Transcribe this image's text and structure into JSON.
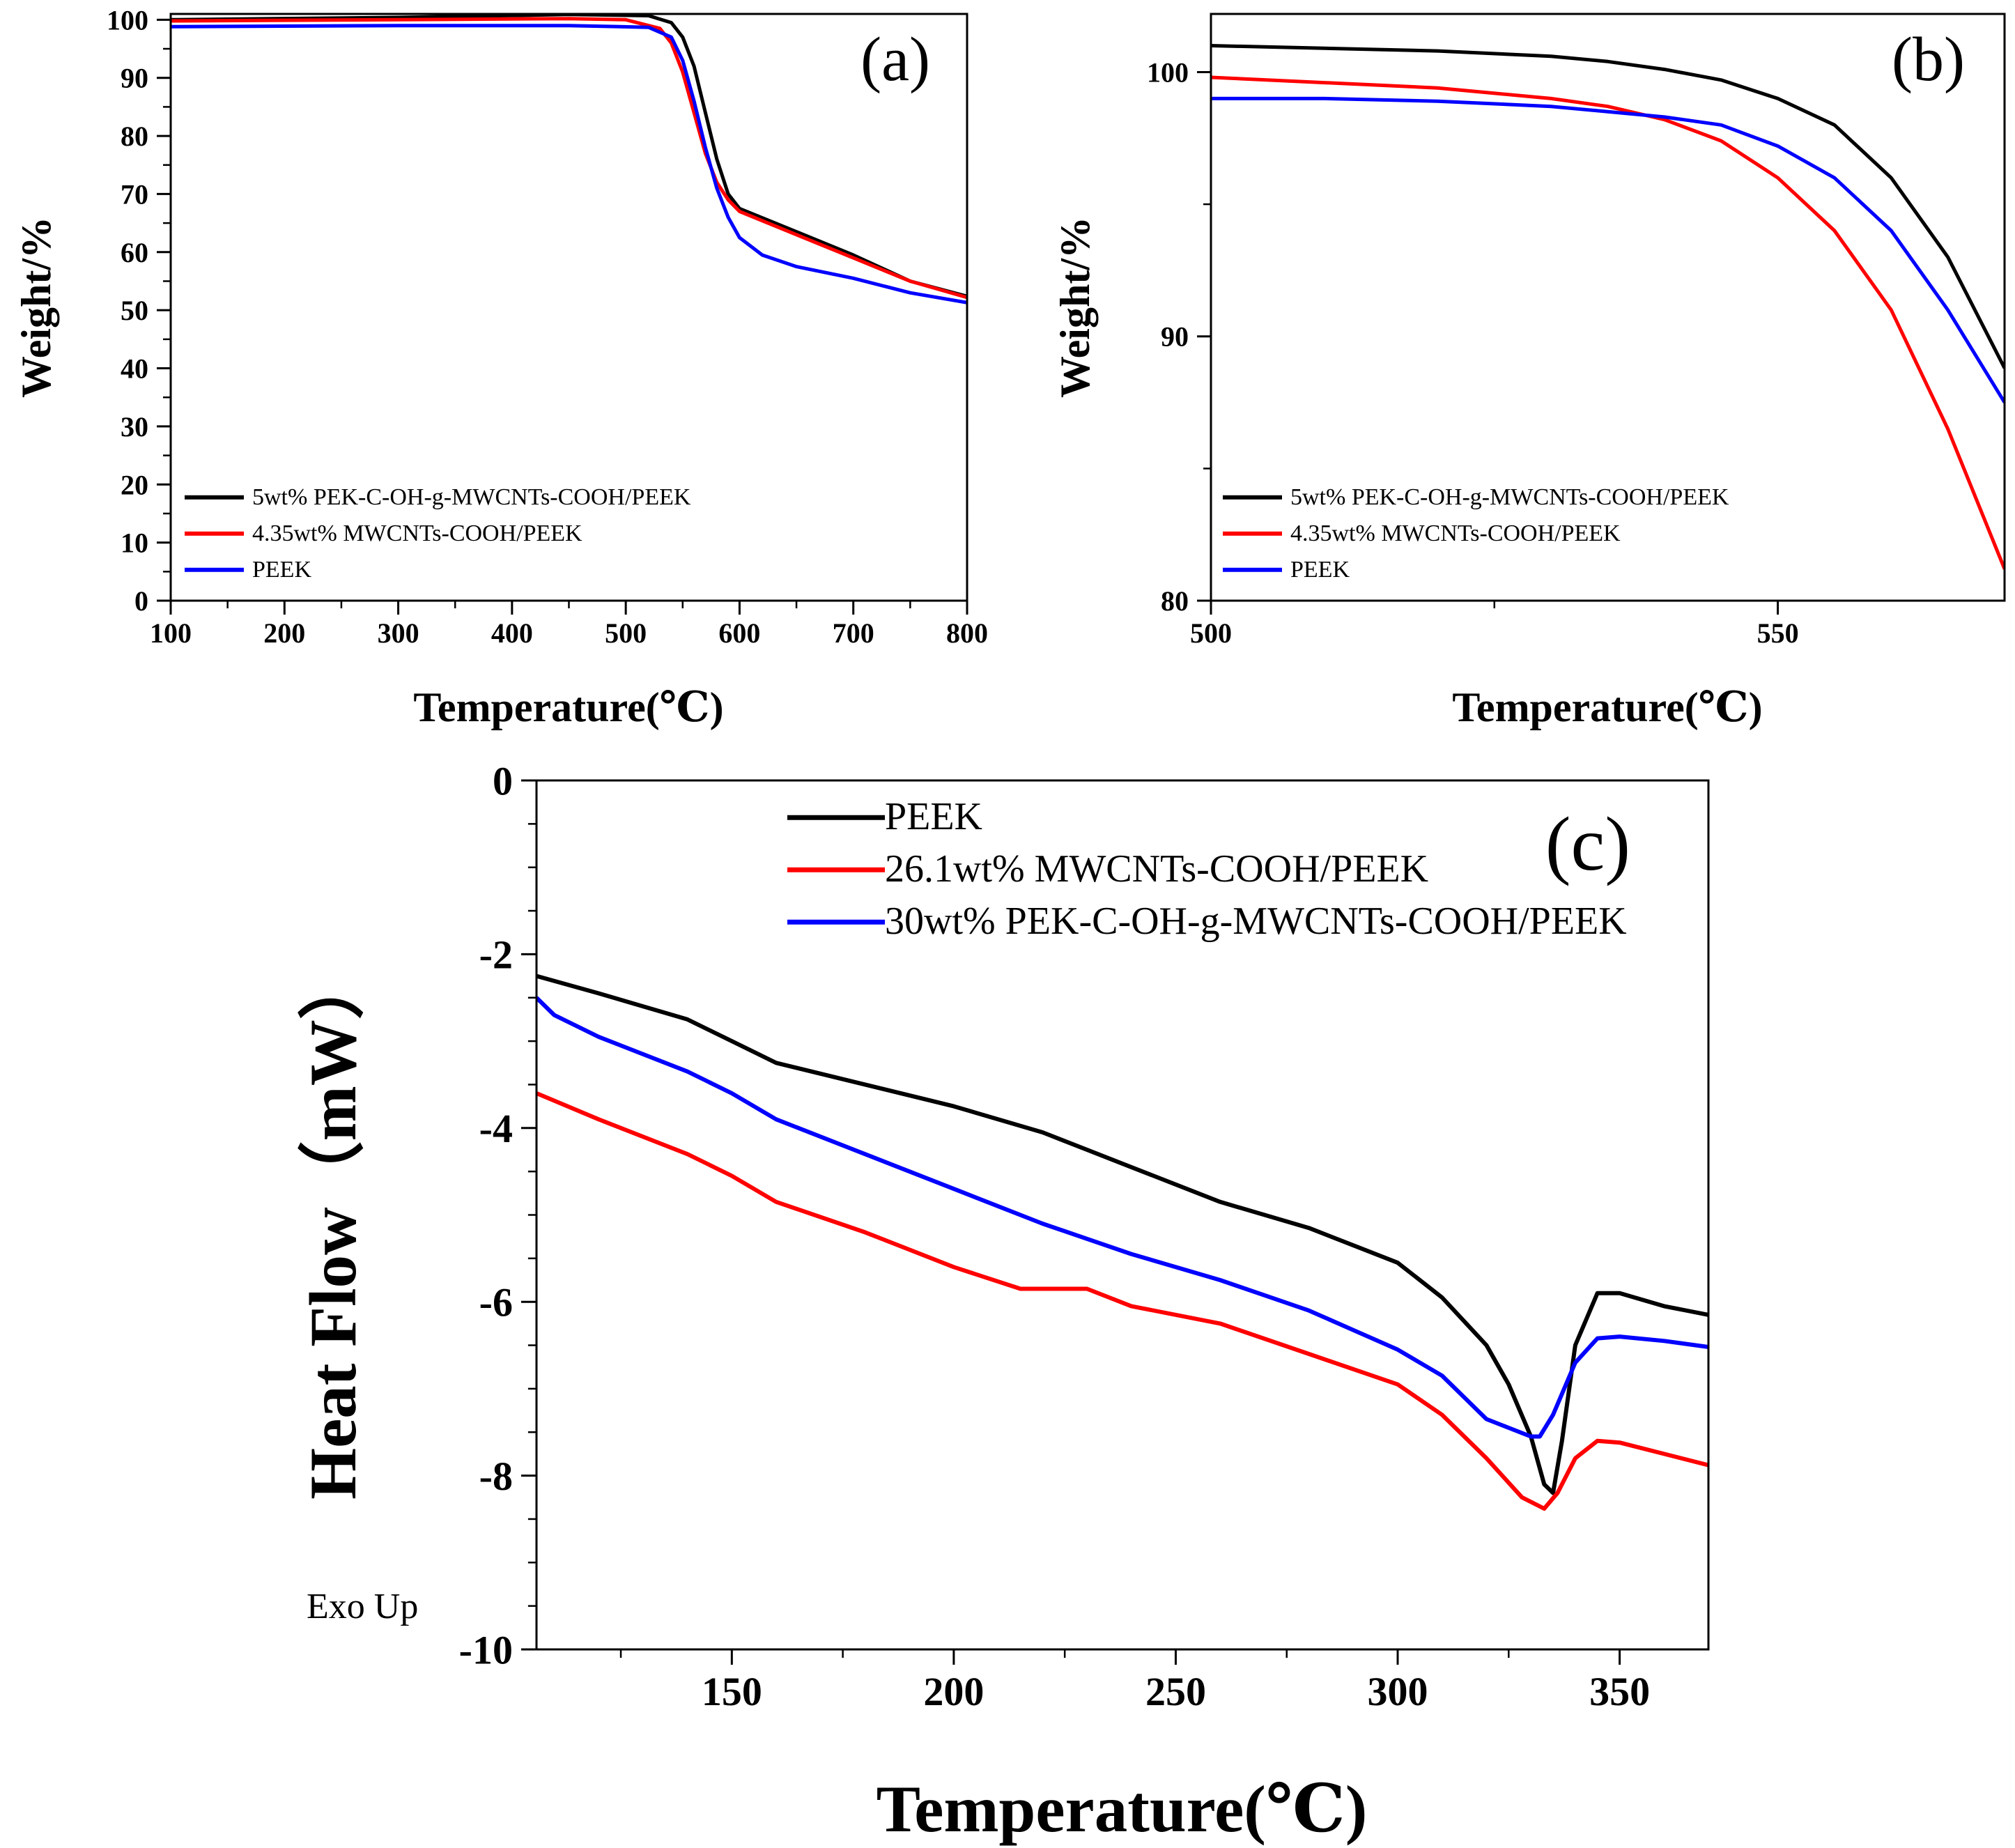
{
  "chart_data": [
    {
      "id": "a",
      "type": "line",
      "panel_label": "(a)",
      "xlabel": "Temperature(℃)",
      "ylabel": "Weight/%",
      "xlim": [
        100,
        800
      ],
      "ylim": [
        0,
        101
      ],
      "xticks": [
        100,
        200,
        300,
        400,
        500,
        600,
        700,
        800
      ],
      "yticks": [
        0,
        10,
        20,
        30,
        40,
        50,
        60,
        70,
        80,
        90,
        100
      ],
      "legend_position": "bottom-left",
      "series": [
        {
          "name": "5wt% PEK-C-OH-g-MWCNTs-COOH/PEEK",
          "color": "#000000",
          "x": [
            100,
            300,
            450,
            520,
            540,
            550,
            560,
            570,
            580,
            590,
            600,
            650,
            700,
            750,
            800
          ],
          "y": [
            100.0,
            100.4,
            100.9,
            100.7,
            99.5,
            97,
            92,
            84,
            76,
            70,
            67.5,
            63.5,
            59.5,
            55.0,
            52.4
          ]
        },
        {
          "name": "4.35wt% MWCNTs-COOH/PEEK",
          "color": "#ff0000",
          "x": [
            100,
            300,
            450,
            500,
            530,
            540,
            550,
            560,
            570,
            580,
            590,
            600,
            650,
            700,
            750,
            800
          ],
          "y": [
            99.8,
            100.0,
            100.2,
            100.0,
            98.5,
            96,
            91,
            84,
            77,
            72,
            69,
            67,
            63,
            59,
            55,
            52.2
          ]
        },
        {
          "name": "PEEK",
          "color": "#0000ff",
          "x": [
            100,
            300,
            450,
            520,
            540,
            550,
            560,
            570,
            580,
            590,
            600,
            620,
            650,
            700,
            750,
            800
          ],
          "y": [
            98.8,
            99.0,
            99.0,
            98.7,
            97,
            93,
            86,
            78,
            71,
            66,
            62.5,
            59.5,
            57.5,
            55.5,
            53.0,
            51.3
          ]
        }
      ]
    },
    {
      "id": "b",
      "type": "line",
      "panel_label": "(b)",
      "xlabel": "Temperature(℃)",
      "ylabel": "Weight/%",
      "xlim": [
        500,
        570
      ],
      "ylim": [
        80,
        102.2
      ],
      "xticks": [
        500,
        550
      ],
      "yticks": [
        80,
        90,
        100
      ],
      "legend_position": "bottom-left",
      "series": [
        {
          "name": "5wt% PEK-C-OH-g-MWCNTs-COOH/PEEK",
          "color": "#000000",
          "x": [
            500,
            510,
            520,
            530,
            535,
            540,
            545,
            550,
            555,
            560,
            565,
            570
          ],
          "y": [
            101.0,
            100.9,
            100.8,
            100.6,
            100.4,
            100.1,
            99.7,
            99.0,
            98.0,
            96.0,
            93.0,
            88.8
          ]
        },
        {
          "name": "4.35wt% MWCNTs-COOH/PEEK",
          "color": "#ff0000",
          "x": [
            500,
            510,
            520,
            530,
            535,
            540,
            545,
            550,
            555,
            560,
            565,
            570
          ],
          "y": [
            99.8,
            99.6,
            99.4,
            99.0,
            98.7,
            98.2,
            97.4,
            96.0,
            94.0,
            91.0,
            86.5,
            81.2
          ]
        },
        {
          "name": "PEEK",
          "color": "#0000ff",
          "x": [
            500,
            510,
            520,
            530,
            535,
            540,
            545,
            550,
            555,
            560,
            565,
            570
          ],
          "y": [
            99.0,
            99.0,
            98.9,
            98.7,
            98.5,
            98.3,
            98.0,
            97.2,
            96.0,
            94.0,
            91.0,
            87.5
          ]
        }
      ]
    },
    {
      "id": "c",
      "type": "line",
      "panel_label": "(c)",
      "xlabel": "Temperature(℃)",
      "ylabel": "Heat Flow（mW）",
      "annotation": "Exo Up",
      "xlim": [
        106,
        370
      ],
      "ylim": [
        -10,
        0
      ],
      "xticks": [
        150,
        200,
        250,
        300,
        350
      ],
      "yticks": [
        0,
        -2,
        -4,
        -6,
        -8,
        -10
      ],
      "legend_position": "top-right",
      "series": [
        {
          "name": "PEEK",
          "color": "#000000",
          "x": [
            106,
            120,
            140,
            150,
            160,
            180,
            200,
            220,
            240,
            260,
            280,
            300,
            310,
            320,
            325,
            330,
            333,
            335,
            337,
            340,
            345,
            350,
            360,
            370
          ],
          "y": [
            -2.25,
            -2.45,
            -2.75,
            -3.0,
            -3.25,
            -3.5,
            -3.75,
            -4.05,
            -4.45,
            -4.85,
            -5.15,
            -5.55,
            -5.95,
            -6.5,
            -6.95,
            -7.55,
            -8.1,
            -8.2,
            -7.6,
            -6.5,
            -5.9,
            -5.9,
            -6.05,
            -6.15
          ]
        },
        {
          "name": "26.1wt% MWCNTs-COOH/PEEK",
          "color": "#ff0000",
          "x": [
            106,
            120,
            140,
            150,
            160,
            180,
            200,
            215,
            222,
            230,
            240,
            260,
            280,
            300,
            310,
            320,
            328,
            333,
            336,
            340,
            345,
            350,
            360,
            370
          ],
          "y": [
            -3.6,
            -3.9,
            -4.3,
            -4.55,
            -4.85,
            -5.2,
            -5.6,
            -5.85,
            -5.85,
            -5.85,
            -6.05,
            -6.25,
            -6.6,
            -6.95,
            -7.3,
            -7.8,
            -8.25,
            -8.38,
            -8.2,
            -7.8,
            -7.6,
            -7.62,
            -7.75,
            -7.88
          ]
        },
        {
          "name": "30wt% PEK-C-OH-g-MWCNTs-COOH/PEEK",
          "color": "#0000ff",
          "x": [
            106,
            110,
            120,
            140,
            150,
            160,
            180,
            200,
            220,
            240,
            260,
            280,
            300,
            310,
            315,
            320,
            325,
            330,
            332,
            335,
            340,
            345,
            350,
            360,
            370
          ],
          "y": [
            -2.5,
            -2.7,
            -2.95,
            -3.35,
            -3.6,
            -3.9,
            -4.3,
            -4.7,
            -5.1,
            -5.45,
            -5.75,
            -6.1,
            -6.55,
            -6.85,
            -7.1,
            -7.35,
            -7.45,
            -7.55,
            -7.55,
            -7.3,
            -6.7,
            -6.42,
            -6.4,
            -6.45,
            -6.52
          ]
        }
      ]
    }
  ]
}
